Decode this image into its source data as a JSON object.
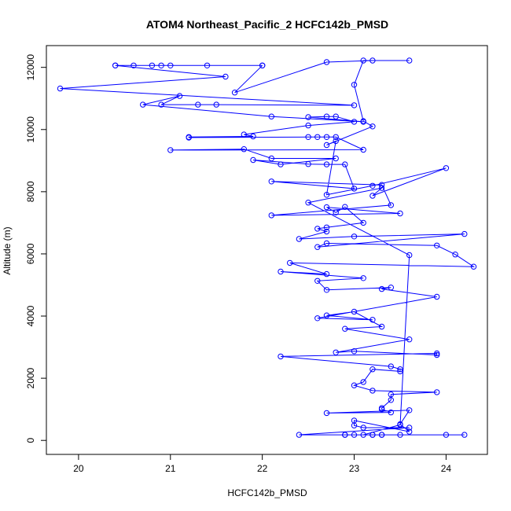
{
  "chart_data": {
    "type": "line",
    "title": "ATOM4 Northeast_Pacific_2 HCFC142b_PMSD",
    "xlabel": "HCFC142b_PMSD",
    "ylabel": "Altitude (m)",
    "xlim": [
      19.65,
      24.45
    ],
    "ylim": [
      -450,
      12700
    ],
    "xticks": [
      20,
      21,
      22,
      23,
      24
    ],
    "yticks": [
      0,
      2000,
      4000,
      6000,
      8000,
      10000,
      12000
    ],
    "grid": false,
    "line_color": "#0000ff",
    "marker": "open-circle",
    "points": [
      [
        22.0,
        12060
      ],
      [
        21.4,
        12060
      ],
      [
        21.0,
        12060
      ],
      [
        20.9,
        12060
      ],
      [
        20.8,
        12060
      ],
      [
        20.6,
        12060
      ],
      [
        20.4,
        12060
      ],
      [
        20.4,
        12060
      ],
      [
        21.6,
        11700
      ],
      [
        19.8,
        11320
      ],
      [
        23.0,
        10780
      ],
      [
        21.5,
        10800
      ],
      [
        21.3,
        10800
      ],
      [
        20.9,
        10800
      ],
      [
        21.1,
        11080
      ],
      [
        20.7,
        10800
      ],
      [
        22.1,
        10420
      ],
      [
        23.1,
        10250
      ],
      [
        22.5,
        10400
      ],
      [
        22.7,
        10420
      ],
      [
        22.8,
        10420
      ],
      [
        23.0,
        10250
      ],
      [
        22.5,
        10130
      ],
      [
        21.8,
        9840
      ],
      [
        21.9,
        9780
      ],
      [
        21.2,
        9760
      ],
      [
        21.2,
        9740
      ],
      [
        22.5,
        9760
      ],
      [
        22.6,
        9760
      ],
      [
        22.7,
        9760
      ],
      [
        22.8,
        9760
      ],
      [
        23.1,
        9350
      ],
      [
        21.0,
        9340
      ],
      [
        21.8,
        9370
      ],
      [
        22.1,
        9070
      ],
      [
        22.8,
        9070
      ],
      [
        22.2,
        8880
      ],
      [
        21.9,
        9020
      ],
      [
        22.5,
        8890
      ],
      [
        22.7,
        8880
      ],
      [
        22.9,
        8880
      ],
      [
        23.0,
        8100
      ],
      [
        22.1,
        8330
      ],
      [
        23.3,
        8220
      ],
      [
        23.4,
        7570
      ],
      [
        22.1,
        7240
      ],
      [
        23.5,
        7300
      ],
      [
        22.7,
        7500
      ],
      [
        22.8,
        7330
      ],
      [
        22.9,
        7510
      ],
      [
        23.1,
        7000
      ],
      [
        22.7,
        6850
      ],
      [
        22.6,
        6810
      ],
      [
        22.7,
        6720
      ],
      [
        22.4,
        6480
      ],
      [
        23.0,
        6560
      ],
      [
        24.2,
        6640
      ],
      [
        22.6,
        6220
      ],
      [
        22.7,
        6340
      ],
      [
        23.9,
        6270
      ],
      [
        24.1,
        5980
      ],
      [
        24.3,
        5590
      ],
      [
        22.3,
        5710
      ],
      [
        22.7,
        5350
      ],
      [
        22.2,
        5430
      ],
      [
        23.1,
        5220
      ],
      [
        22.6,
        5130
      ],
      [
        22.7,
        4840
      ],
      [
        23.4,
        4920
      ],
      [
        23.3,
        4870
      ],
      [
        23.9,
        4620
      ],
      [
        22.6,
        3930
      ],
      [
        23.2,
        3880
      ],
      [
        22.7,
        4020
      ],
      [
        23.0,
        4140
      ],
      [
        23.3,
        3660
      ],
      [
        22.9,
        3590
      ],
      [
        23.6,
        3250
      ],
      [
        22.8,
        2830
      ],
      [
        23.0,
        2870
      ],
      [
        23.9,
        2750
      ],
      [
        23.9,
        2800
      ],
      [
        22.2,
        2700
      ],
      [
        23.4,
        2380
      ],
      [
        23.5,
        2290
      ],
      [
        23.5,
        2220
      ],
      [
        23.2,
        2290
      ],
      [
        23.1,
        1880
      ],
      [
        23.0,
        1770
      ],
      [
        23.2,
        1600
      ],
      [
        23.9,
        1550
      ],
      [
        23.4,
        1480
      ],
      [
        23.4,
        1300
      ],
      [
        23.3,
        1040
      ],
      [
        23.3,
        1000
      ],
      [
        23.4,
        900
      ],
      [
        22.7,
        880
      ],
      [
        23.6,
        970
      ],
      [
        23.5,
        520
      ],
      [
        23.6,
        280
      ],
      [
        23.0,
        640
      ],
      [
        23.0,
        480
      ],
      [
        23.1,
        410
      ],
      [
        23.6,
        410
      ],
      [
        22.4,
        180
      ],
      [
        24.2,
        180
      ],
      [
        24.0,
        180
      ],
      [
        23.5,
        180
      ],
      [
        23.3,
        180
      ],
      [
        23.2,
        180
      ],
      [
        23.0,
        180
      ],
      [
        22.9,
        180
      ],
      [
        22.9,
        180
      ],
      [
        23.2,
        180
      ],
      [
        23.3,
        180
      ],
      [
        23.1,
        180
      ],
      [
        23.5,
        500
      ],
      [
        23.6,
        5960
      ],
      [
        22.5,
        7650
      ],
      [
        23.3,
        8120
      ],
      [
        23.2,
        7870
      ],
      [
        24.0,
        8760
      ],
      [
        23.2,
        8190
      ],
      [
        22.7,
        7900
      ],
      [
        22.8,
        9630
      ],
      [
        22.7,
        9500
      ],
      [
        23.2,
        10100
      ],
      [
        23.1,
        10270
      ],
      [
        23.0,
        11440
      ],
      [
        23.1,
        12220
      ],
      [
        23.6,
        12220
      ],
      [
        23.2,
        12220
      ],
      [
        22.7,
        12170
      ],
      [
        21.7,
        11190
      ],
      [
        22.0,
        12060
      ]
    ]
  }
}
